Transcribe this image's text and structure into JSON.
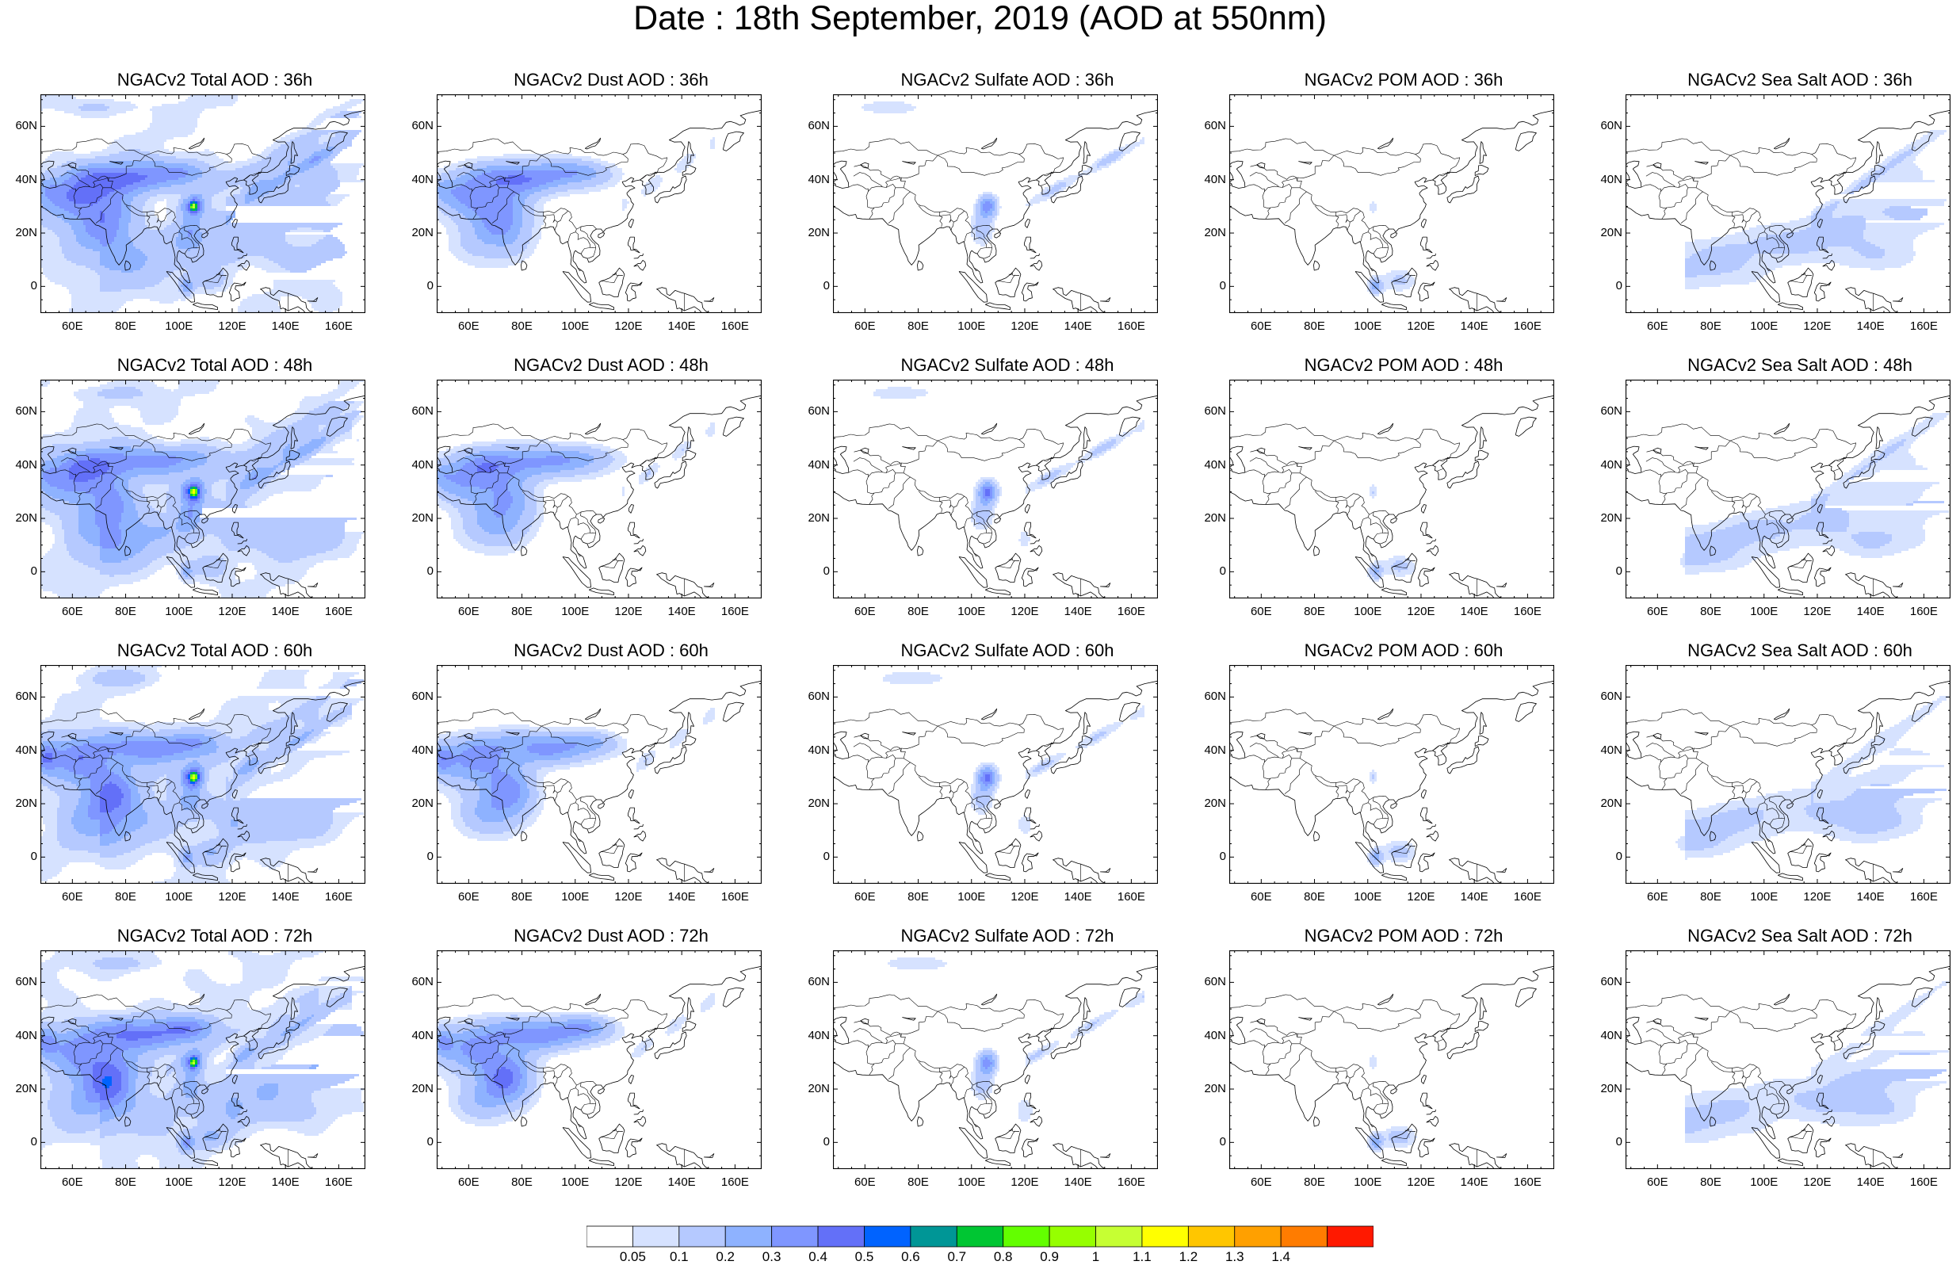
{
  "title": "Date : 18th September, 2019 (AOD at 550nm)",
  "lat_labels": [
    "60N",
    "40N",
    "20N",
    "0"
  ],
  "lon_labels": [
    "60E",
    "80E",
    "100E",
    "120E",
    "140E",
    "160E"
  ],
  "rows": [
    {
      "forecast_hour": "36h",
      "titles": [
        "NGACv2 Total AOD : 36h",
        "NGACv2 Dust AOD : 36h",
        "NGACv2 Sulfate AOD : 36h",
        "NGACv2 POM AOD : 36h",
        "NGACv2 Sea Salt AOD : 36h"
      ]
    },
    {
      "forecast_hour": "48h",
      "titles": [
        "NGACv2 Total AOD : 48h",
        "NGACv2 Dust AOD : 48h",
        "NGACv2 Sulfate AOD : 48h",
        "NGACv2 POM AOD : 48h",
        "NGACv2 Sea Salt AOD : 48h"
      ]
    },
    {
      "forecast_hour": "60h",
      "titles": [
        "NGACv2 Total AOD : 60h",
        "NGACv2 Dust AOD : 60h",
        "NGACv2 Sulfate AOD : 60h",
        "NGACv2 POM AOD : 60h",
        "NGACv2 Sea Salt AOD : 60h"
      ]
    },
    {
      "forecast_hour": "72h",
      "titles": [
        "NGACv2 Total AOD : 72h",
        "NGACv2 Dust AOD : 72h",
        "NGACv2 Sulfate AOD : 72h",
        "NGACv2 POM AOD : 72h",
        "NGACv2 Sea Salt  AOD : 72h"
      ]
    }
  ],
  "colorbar": {
    "labels": [
      "0.05",
      "0.1",
      "0.2",
      "0.3",
      "0.4",
      "0.5",
      "0.6",
      "0.7",
      "0.8",
      "0.9",
      "1",
      "1.1",
      "1.2",
      "1.3",
      "1.4"
    ],
    "colors": [
      "#ffffff",
      "#d6e2ff",
      "#b5c9ff",
      "#8eb2ff",
      "#7f96ff",
      "#6370f8",
      "#0063ff",
      "#009696",
      "#00c633",
      "#63ff00",
      "#96ff00",
      "#c6ff33",
      "#ffff00",
      "#ffc600",
      "#ffa000",
      "#ff7c00",
      "#ff1900"
    ]
  },
  "colors": {
    "land_outline": "#000000",
    "frame": "#000000"
  }
}
